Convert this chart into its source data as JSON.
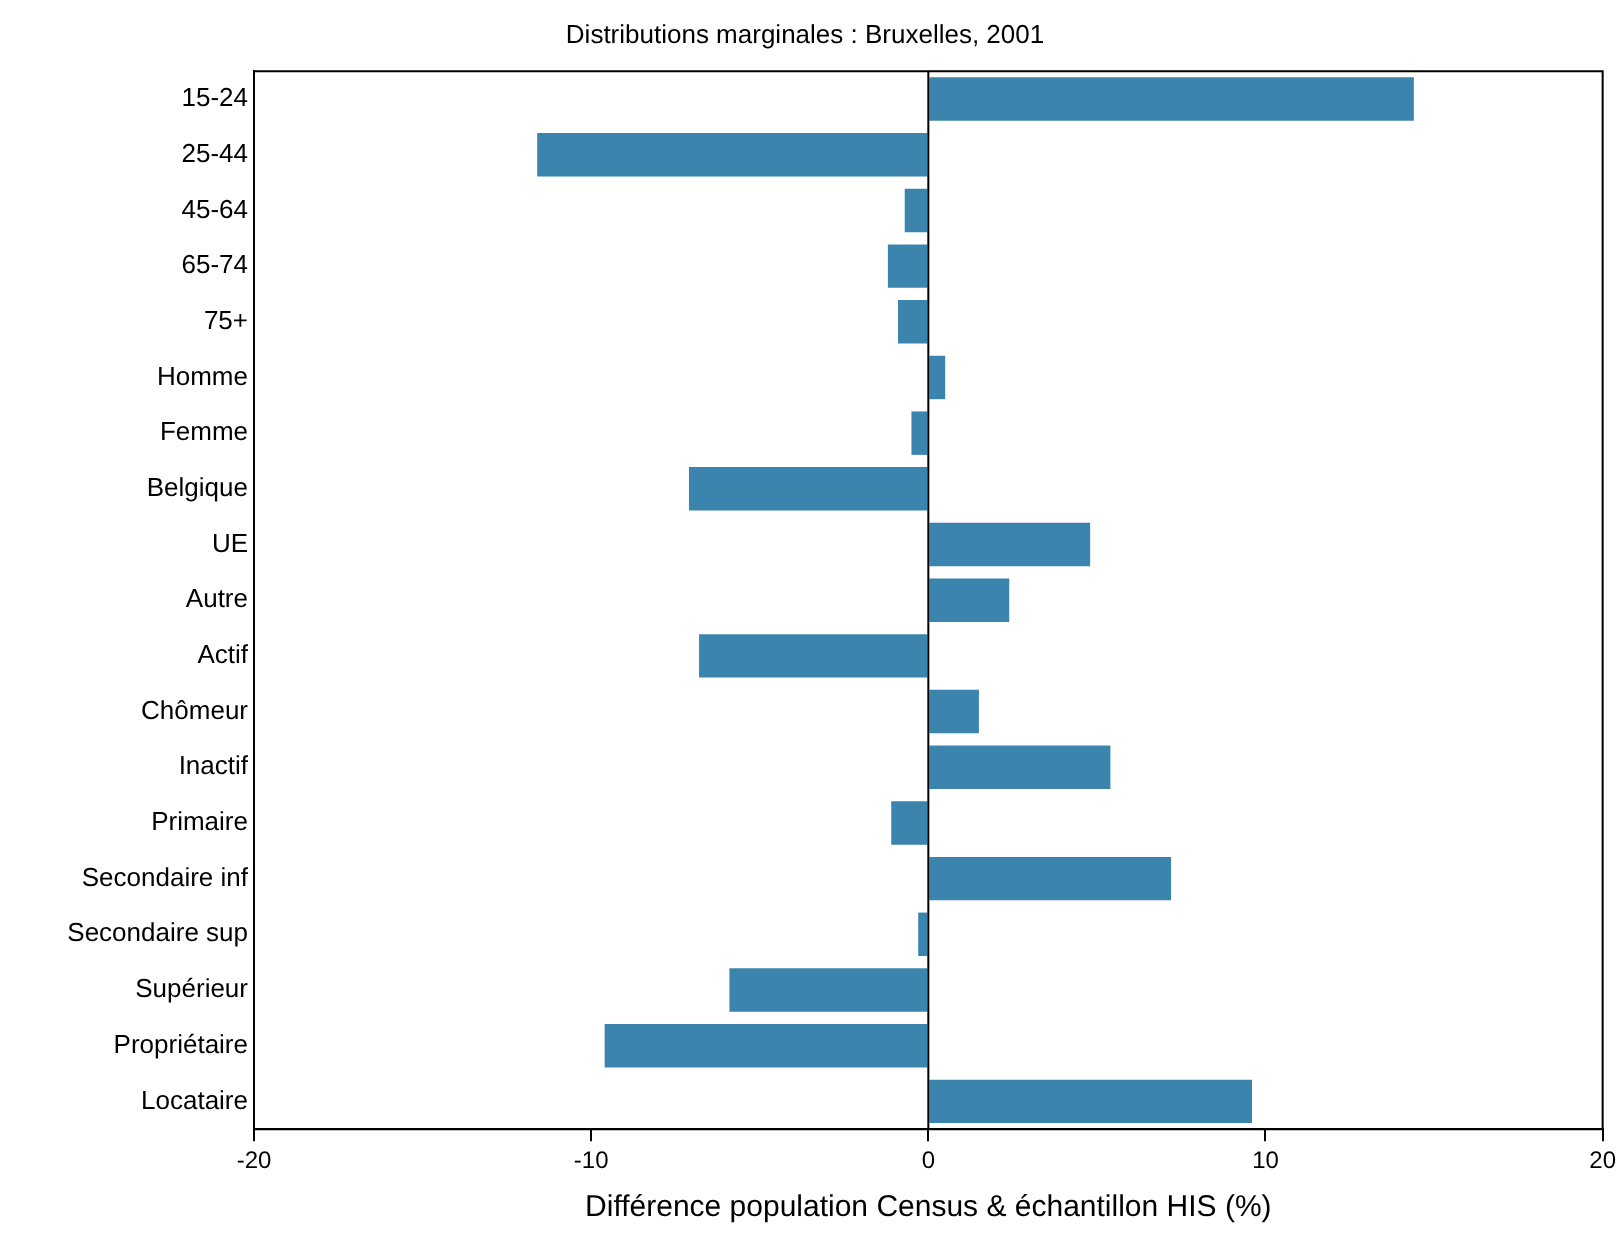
{
  "chart_data": {
    "type": "bar",
    "orientation": "horizontal",
    "title": "Distributions marginales : Bruxelles, 2001",
    "xlabel": "Différence population Census & échantillon HIS (%)",
    "categories": [
      "15-24",
      "25-44",
      "45-64",
      "65-74",
      "75+",
      "Homme",
      "Femme",
      "Belgique",
      "UE",
      "Autre",
      "Actif",
      "Chômeur",
      "Inactif",
      "Primaire",
      "Secondaire inf",
      "Secondaire sup",
      "Supérieur",
      "Propriétaire",
      "Locataire"
    ],
    "values": [
      14.4,
      -11.6,
      -0.7,
      -1.2,
      -0.9,
      0.5,
      -0.5,
      -7.1,
      4.8,
      2.4,
      -6.8,
      1.5,
      5.4,
      -1.1,
      7.2,
      -0.3,
      -5.9,
      -9.6,
      9.6
    ],
    "color": "#3a84ad",
    "xlim": [
      -20,
      20
    ],
    "xticks": [
      -20,
      -10,
      0,
      10,
      20
    ],
    "grid": false,
    "legend": false,
    "ref_lines": [
      {
        "axis": "x",
        "value": 0,
        "color": "#000000"
      }
    ]
  }
}
